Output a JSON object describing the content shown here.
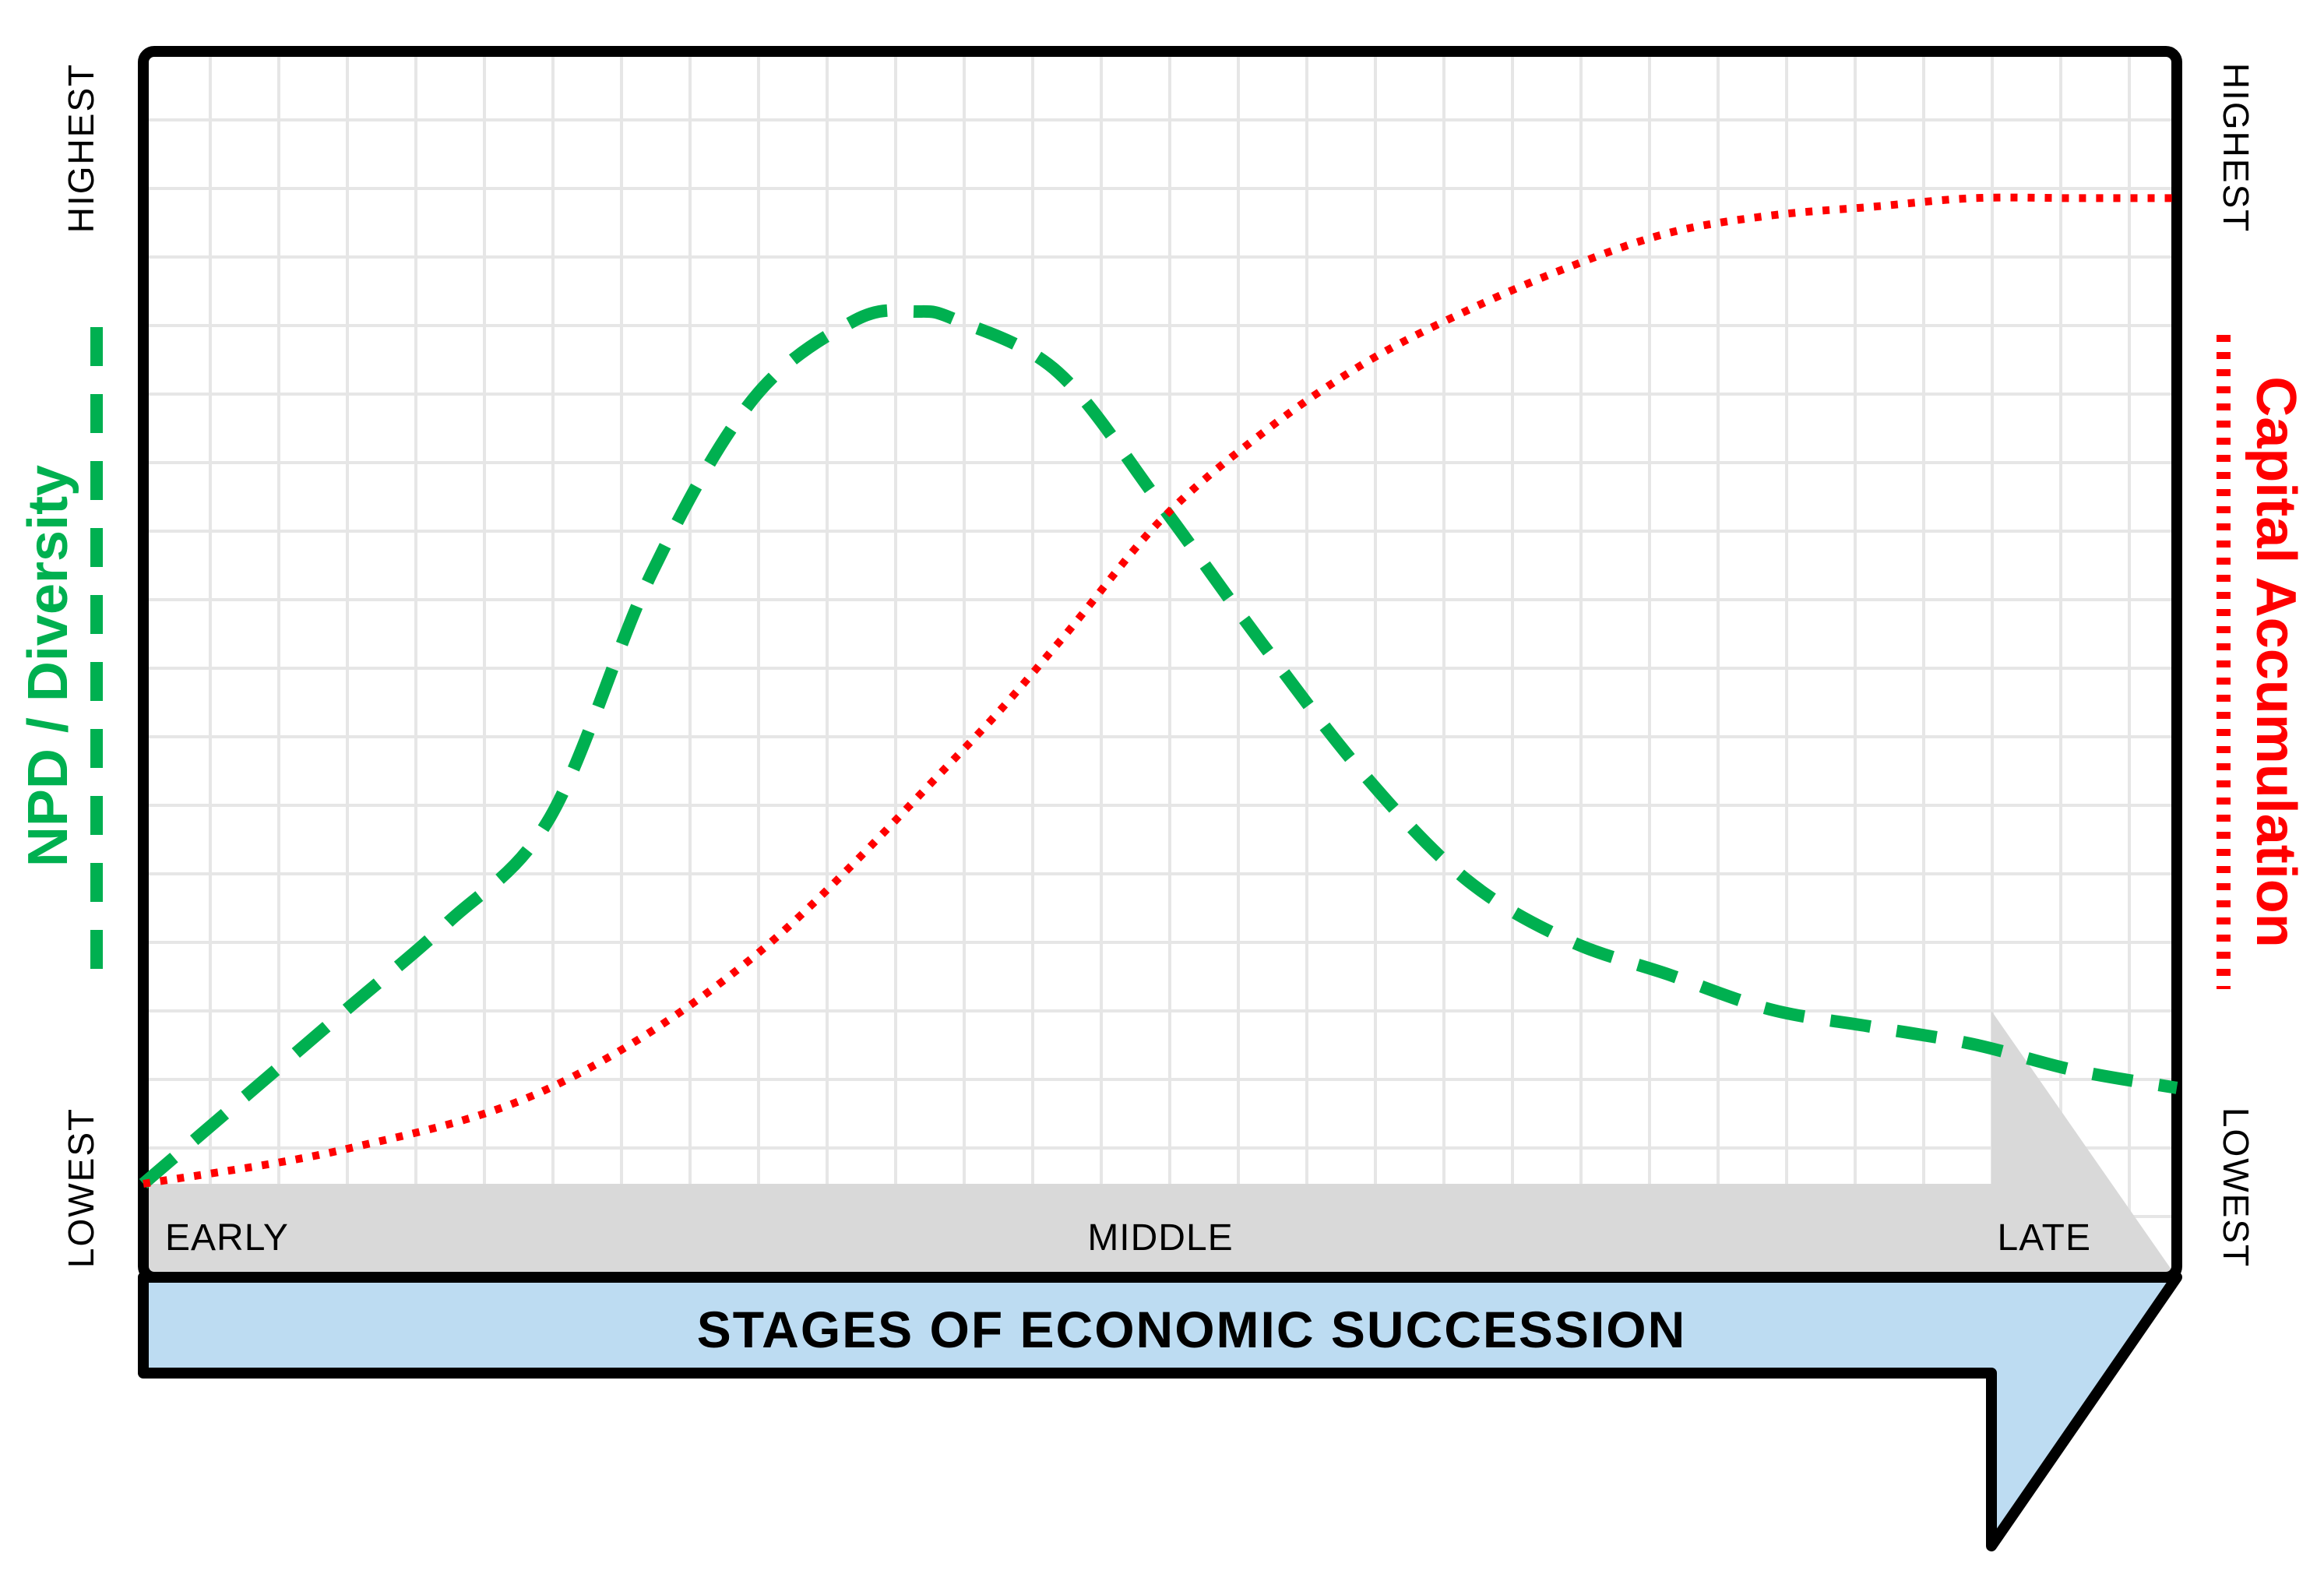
{
  "chart_data": {
    "type": "line",
    "xlabel": "STAGES OF ECONOMIC SUCCESSION",
    "stages": [
      "EARLY",
      "MIDDLE",
      "LATE"
    ],
    "xlim": [
      0,
      1
    ],
    "ylim": [
      0,
      1
    ],
    "y_left": {
      "top": "HIGHEST",
      "bottom": "LOWEST"
    },
    "y_right": {
      "top": "HIGHEST",
      "bottom": "LOWEST"
    },
    "grid": true,
    "series": [
      {
        "name": "NPD / Diversity",
        "color": "#00b050",
        "line_style": "dashed",
        "axis": "left",
        "x": [
          0.0,
          0.05,
          0.1,
          0.15,
          0.2,
          0.25,
          0.3,
          0.35,
          0.38,
          0.4,
          0.45,
          0.5,
          0.55,
          0.6,
          0.65,
          0.7,
          0.75,
          0.8,
          0.85,
          0.9,
          0.95,
          1.0
        ],
        "y": [
          0.0,
          0.1,
          0.2,
          0.3,
          0.42,
          0.7,
          0.9,
          0.99,
          1.0,
          0.99,
          0.93,
          0.78,
          0.62,
          0.47,
          0.35,
          0.28,
          0.24,
          0.2,
          0.18,
          0.16,
          0.13,
          0.11
        ]
      },
      {
        "name": "Capital Accumulation",
        "color": "#ff0000",
        "line_style": "dotted",
        "axis": "right",
        "x": [
          0.0,
          0.1,
          0.2,
          0.3,
          0.4,
          0.45,
          0.5,
          0.55,
          0.6,
          0.65,
          0.7,
          0.75,
          0.8,
          0.85,
          0.9,
          0.95,
          1.0
        ],
        "y": [
          0.0,
          0.04,
          0.11,
          0.26,
          0.49,
          0.62,
          0.76,
          0.86,
          0.94,
          1.0,
          1.05,
          1.09,
          1.11,
          1.12,
          1.13,
          1.13,
          1.13
        ]
      }
    ]
  }
}
